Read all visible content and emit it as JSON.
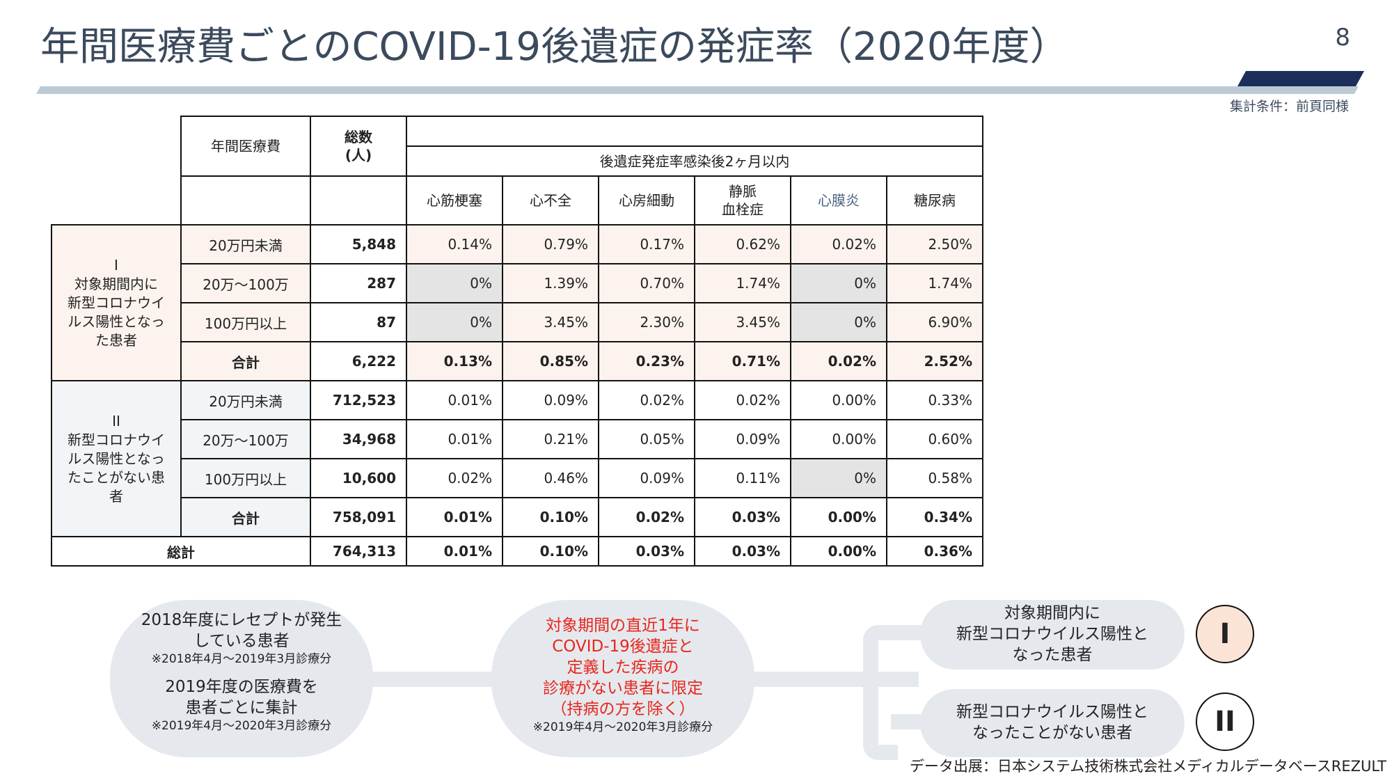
{
  "header": {
    "title": "年間医療費ごとのCOVID-19後遺症の発症率（2020年度）",
    "page_number": "8",
    "condition_note": "集計条件：前頁同様"
  },
  "table": {
    "headers": {
      "cost": "年間医療費",
      "total": "総数\n(人)",
      "span": "後遺症発症率感染後2ヶ月以内",
      "diseases": [
        "心筋梗塞",
        "心不全",
        "心房細動",
        "静脈\n血栓症",
        "心膜炎",
        "糖尿病"
      ]
    },
    "groups": [
      {
        "label": "I\n対象期間内に\n新型コロナウイ\nルス陽性となっ\nた患者",
        "rows": [
          {
            "band": "20万円未満",
            "total": "5,848",
            "rates": [
              "0.14%",
              "0.79%",
              "0.17%",
              "0.62%",
              "0.02%",
              "2.50%"
            ]
          },
          {
            "band": "20万〜100万",
            "total": "287",
            "rates": [
              "0%",
              "1.39%",
              "0.70%",
              "1.74%",
              "0%",
              "1.74%"
            ]
          },
          {
            "band": "100万円以上",
            "total": "87",
            "rates": [
              "0%",
              "3.45%",
              "2.30%",
              "3.45%",
              "0%",
              "6.90%"
            ]
          },
          {
            "band": "合計",
            "total": "6,222",
            "rates": [
              "0.13%",
              "0.85%",
              "0.23%",
              "0.71%",
              "0.02%",
              "2.52%"
            ]
          }
        ]
      },
      {
        "label": "II\n新型コロナウイ\nルス陽性となっ\nたことがない患\n者",
        "rows": [
          {
            "band": "20万円未満",
            "total": "712,523",
            "rates": [
              "0.01%",
              "0.09%",
              "0.02%",
              "0.02%",
              "0.00%",
              "0.33%"
            ]
          },
          {
            "band": "20万〜100万",
            "total": "34,968",
            "rates": [
              "0.01%",
              "0.21%",
              "0.05%",
              "0.09%",
              "0.00%",
              "0.60%"
            ]
          },
          {
            "band": "100万円以上",
            "total": "10,600",
            "rates": [
              "0.02%",
              "0.46%",
              "0.09%",
              "0.11%",
              "0%",
              "0.58%"
            ]
          },
          {
            "band": "合計",
            "total": "758,091",
            "rates": [
              "0.01%",
              "0.10%",
              "0.02%",
              "0.03%",
              "0.00%",
              "0.34%"
            ]
          }
        ]
      }
    ],
    "grand_total": {
      "label": "総計",
      "total": "764,313",
      "rates": [
        "0.01%",
        "0.10%",
        "0.03%",
        "0.03%",
        "0.00%",
        "0.36%"
      ]
    }
  },
  "flow": {
    "box1": {
      "line1": "2018年度にレセプトが発生\nしている患者",
      "note1": "※2018年4月〜2019年3月診療分",
      "line2": "2019年度の医療費を\n患者ごとに集計",
      "note2": "※2019年4月〜2020年3月診療分"
    },
    "box2": {
      "text": "対象期間の直近1年に\nCOVID-19後遺症と\n定義した疾病の\n診療がない患者に限定\n（持病の方を除く）",
      "note": "※2019年4月〜2020年3月診療分"
    },
    "box3": {
      "text": "対象期間内に\n新型コロナウイルス陽性と\nなった患者",
      "badge": "I"
    },
    "box4": {
      "text": "新型コロナウイルス陽性と\nなったことがない患者",
      "badge": "II"
    }
  },
  "source": "データ出展：日本システム技術株式会社メディカルデータベースREZULT",
  "colors": {
    "title": "#3b4a5c",
    "accent_dark": "#1c2f5a",
    "accent_light": "#bccad6",
    "group1_bg": "#fcf3ee",
    "group2_bg": "#f2f5f8",
    "highlight_red": "#e8261c"
  }
}
